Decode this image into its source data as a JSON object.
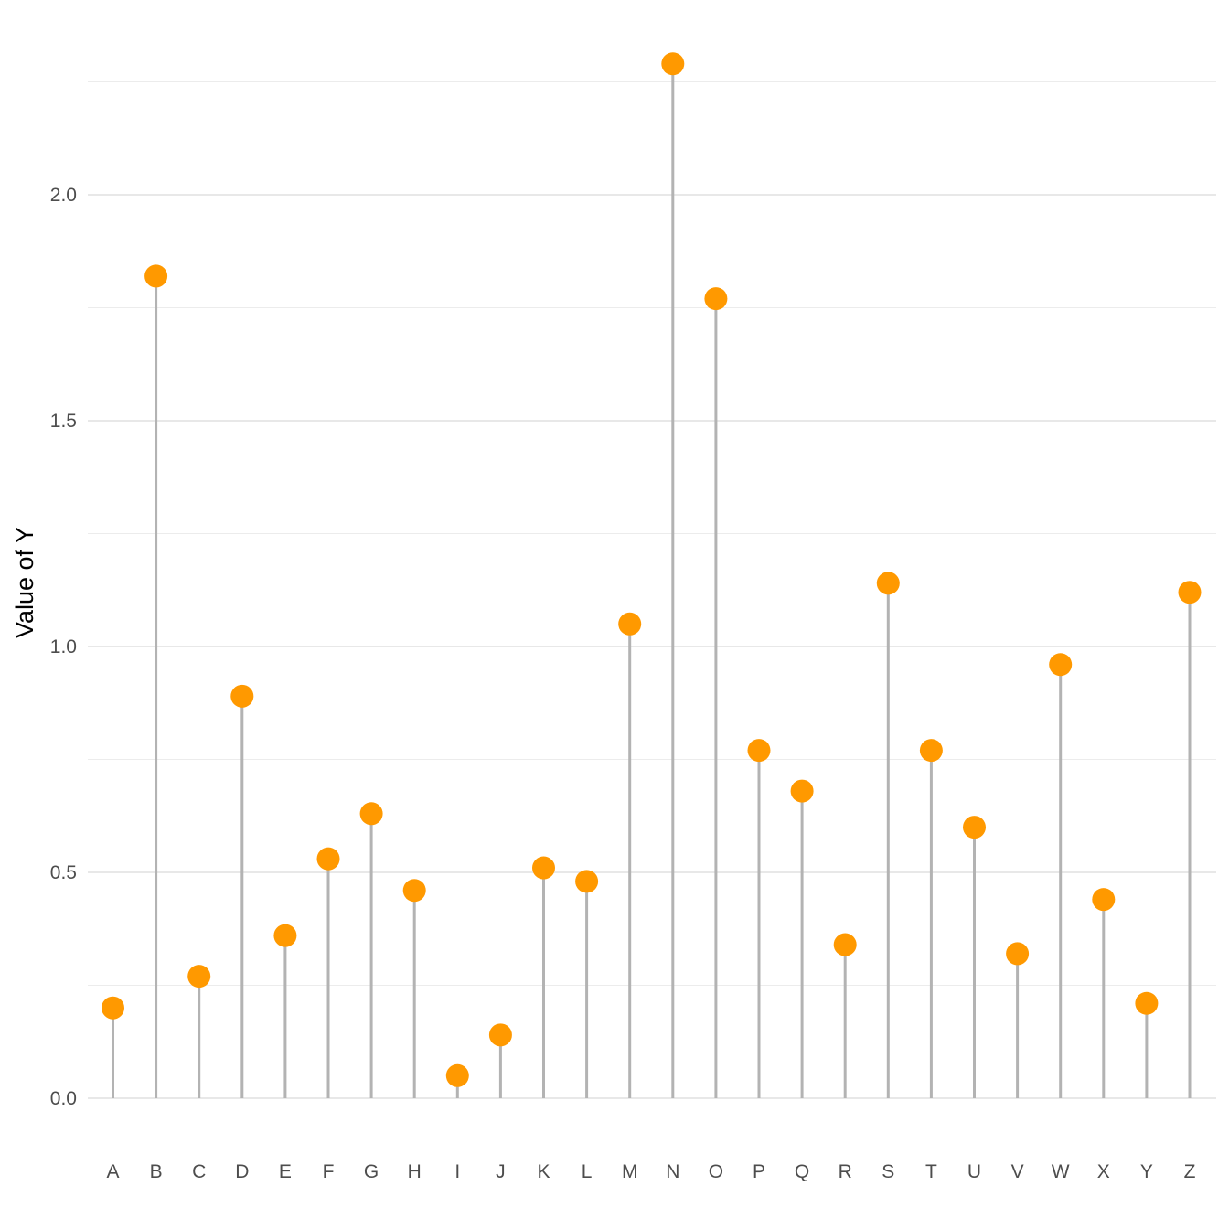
{
  "chart_data": {
    "type": "lollipop",
    "categories": [
      "A",
      "B",
      "C",
      "D",
      "E",
      "F",
      "G",
      "H",
      "I",
      "J",
      "K",
      "L",
      "M",
      "N",
      "O",
      "P",
      "Q",
      "R",
      "S",
      "T",
      "U",
      "V",
      "W",
      "X",
      "Y",
      "Z"
    ],
    "values": [
      0.2,
      1.82,
      0.27,
      0.89,
      0.36,
      0.53,
      0.63,
      0.46,
      0.05,
      0.14,
      0.51,
      0.48,
      1.05,
      2.29,
      1.77,
      0.77,
      0.68,
      0.34,
      1.14,
      0.77,
      0.6,
      0.32,
      0.96,
      0.44,
      0.21,
      1.12
    ],
    "title": "",
    "xlabel": "",
    "ylabel": "Value of Y",
    "ylim": [
      -0.12,
      2.33
    ],
    "yticks": [
      0.0,
      0.5,
      1.0,
      1.5,
      2.0
    ],
    "ytick_labels": [
      "0.0",
      "0.5",
      "1.0",
      "1.5",
      "2.0"
    ],
    "minor_gridlines": [
      0.25,
      0.75,
      1.25,
      1.75,
      2.25
    ],
    "grid": true,
    "legend": "none",
    "colors": {
      "point": "#FF9900",
      "stem": "#B3B3B3",
      "grid_major": "#D9D9D9",
      "grid_minor": "#ECECEC"
    }
  }
}
